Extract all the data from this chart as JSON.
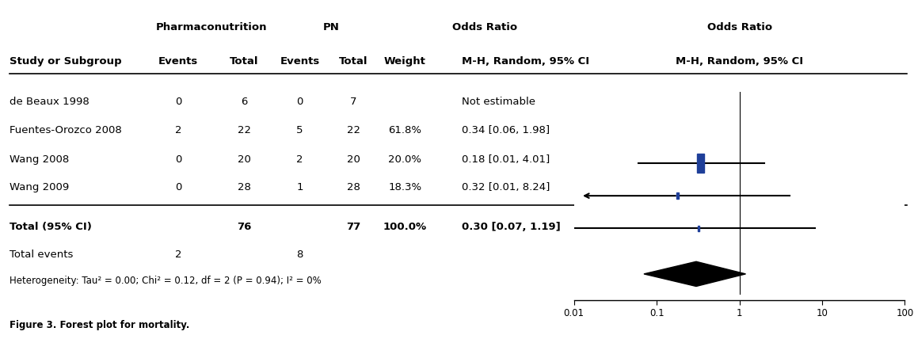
{
  "figure_caption": "Figure 3. Forest plot for mortality.",
  "studies": [
    {
      "name": "de Beaux 1998",
      "pn_events": 0,
      "pn_total": 6,
      "ctrl_events": 0,
      "ctrl_total": 7,
      "weight": "",
      "or_text": "Not estimable",
      "or": null,
      "ci_lo": null,
      "ci_hi": null
    },
    {
      "name": "Fuentes-Orozco 2008",
      "pn_events": 2,
      "pn_total": 22,
      "ctrl_events": 5,
      "ctrl_total": 22,
      "weight": "61.8%",
      "or_text": "0.34 [0.06, 1.98]",
      "or": 0.34,
      "ci_lo": 0.06,
      "ci_hi": 1.98
    },
    {
      "name": "Wang 2008",
      "pn_events": 0,
      "pn_total": 20,
      "ctrl_events": 2,
      "ctrl_total": 20,
      "weight": "20.0%",
      "or_text": "0.18 [0.01, 4.01]",
      "or": 0.18,
      "ci_lo": 0.01,
      "ci_hi": 4.01,
      "arrow_left": true
    },
    {
      "name": "Wang 2009",
      "pn_events": 0,
      "pn_total": 28,
      "ctrl_events": 1,
      "ctrl_total": 28,
      "weight": "18.3%",
      "or_text": "0.32 [0.01, 8.24]",
      "or": 0.32,
      "ci_lo": 0.01,
      "ci_hi": 8.24
    }
  ],
  "total": {
    "pn_total": 76,
    "ctrl_total": 77,
    "weight": "100.0%",
    "or_text": "0.30 [0.07, 1.19]",
    "or": 0.3,
    "ci_lo": 0.07,
    "ci_hi": 1.19,
    "pn_events": 2,
    "ctrl_events": 8
  },
  "heterogeneity_text": "Heterogeneity: Tau² = 0.00; Chi² = 0.12, df = 2 (P = 0.94); I² = 0%",
  "weights_pct": [
    61.8,
    20.0,
    18.3
  ],
  "xaxis_ticks": [
    0.01,
    0.1,
    1,
    10,
    100
  ],
  "xaxis_labels": [
    "0.01",
    "0.1",
    "1",
    "10",
    "100"
  ],
  "xlabel_left": "Pharmaconutrition",
  "xlabel_right": "PN",
  "square_color": "#1F3F99",
  "diamond_color": "#000000",
  "line_color": "#000000",
  "text_color": "#000000",
  "background_color": "#ffffff"
}
